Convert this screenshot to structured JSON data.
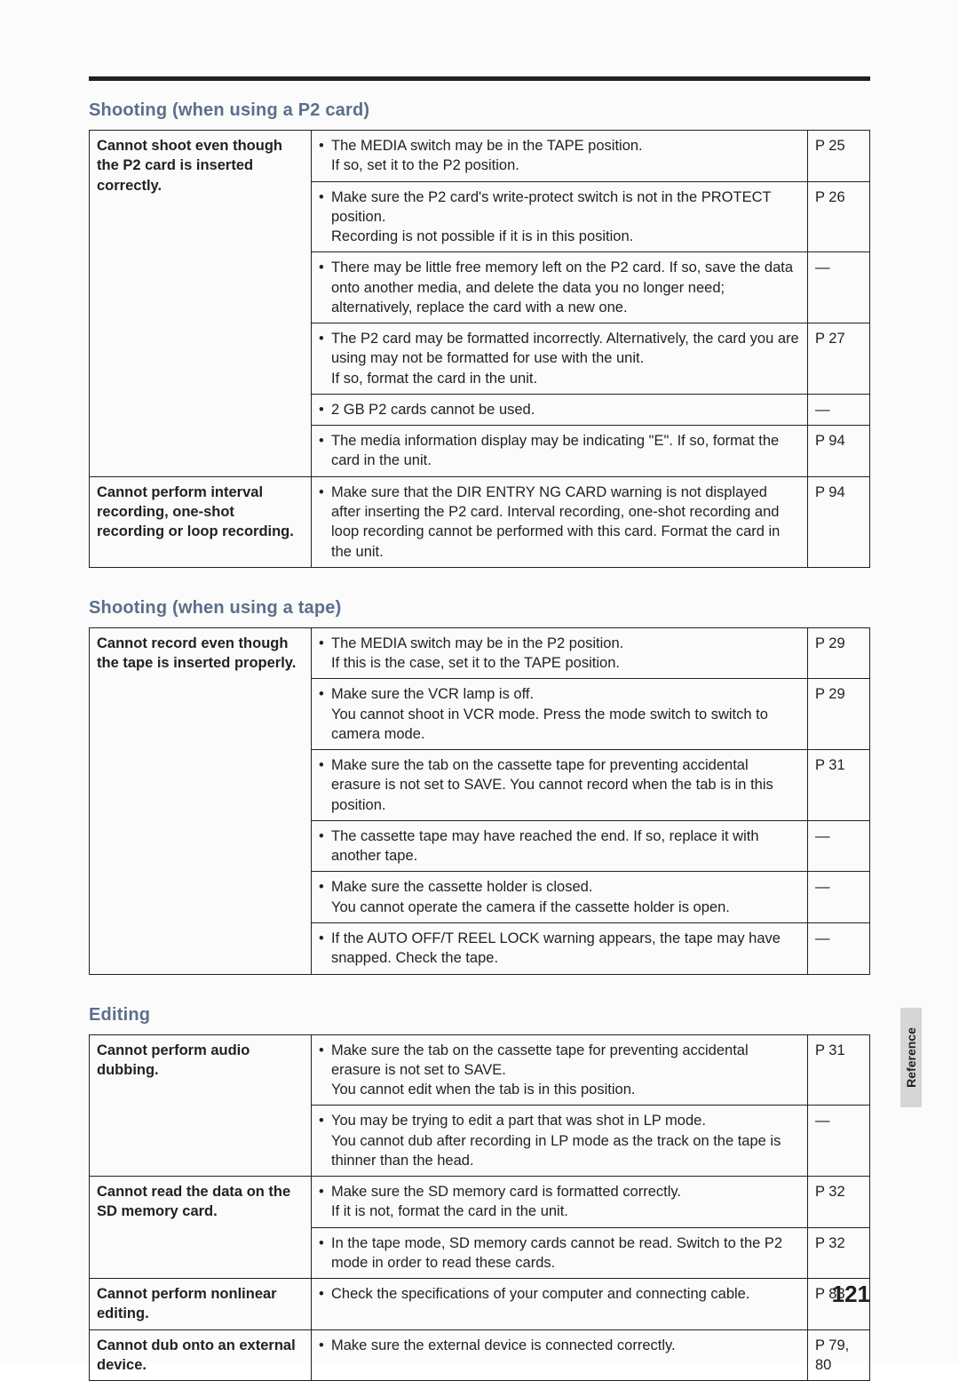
{
  "page_number": "121",
  "side_tab": "Reference",
  "sections": [
    {
      "title": "Shooting (when using a P2 card)",
      "groups": [
        {
          "problem": "Cannot shoot even though the P2 card is inserted correctly.",
          "rows": [
            {
              "cause": "The MEDIA switch may be in the TAPE position.\nIf so, set it to the P2 position.",
              "ref": "P 25"
            },
            {
              "cause": "Make sure the P2 card's write-protect switch is not in the PROTECT position.\nRecording is not possible if it is in this position.",
              "ref": "P 26"
            },
            {
              "cause": "There may be little free memory left on the P2 card. If so, save the data onto another media, and delete the data you no longer need; alternatively, replace the card with a new one.",
              "ref": "—"
            },
            {
              "cause": "The P2 card may be formatted incorrectly. Alternatively, the card you are using may not be formatted for use with the unit.\nIf so, format the card in the unit.",
              "ref": "P 27"
            },
            {
              "cause": "2 GB P2 cards cannot be used.",
              "ref": "—"
            },
            {
              "cause": "The media information display may be indicating \"E\". If so, format the card in the unit.",
              "ref": "P 94"
            }
          ]
        },
        {
          "problem": "Cannot perform interval recording, one-shot recording or loop recording.",
          "rows": [
            {
              "cause": "Make sure that the DIR ENTRY NG CARD warning is not displayed after inserting the P2 card. Interval recording, one-shot recording and loop recording cannot be performed with this card. Format the card in the unit.",
              "ref": "P 94"
            }
          ]
        }
      ]
    },
    {
      "title": "Shooting (when using a tape)",
      "groups": [
        {
          "problem": "Cannot record even though the tape is inserted properly.",
          "rows": [
            {
              "cause": "The MEDIA switch may be in the P2 position.\nIf this is the case, set it to the TAPE position.",
              "ref": "P 29"
            },
            {
              "cause": "Make sure the VCR lamp is off.\nYou cannot shoot in VCR mode. Press the mode switch to switch to camera mode.",
              "ref": "P 29"
            },
            {
              "cause": "Make sure the tab on the cassette tape for preventing accidental erasure is not set to SAVE. You cannot record when the tab is in this position.",
              "ref": "P 31"
            },
            {
              "cause": "The cassette tape may have reached the end. If so, replace it with another tape.",
              "ref": "—"
            },
            {
              "cause": "Make sure the cassette holder is closed.\nYou cannot operate the camera if the cassette holder is open.",
              "ref": "—"
            },
            {
              "cause": "If the AUTO OFF/T REEL LOCK warning appears, the tape may have snapped. Check the tape.",
              "ref": "—"
            }
          ]
        }
      ]
    },
    {
      "title": "Editing",
      "groups": [
        {
          "problem": "Cannot perform audio dubbing.",
          "rows": [
            {
              "cause": "Make sure the tab on the cassette tape for preventing accidental erasure is not set to SAVE.\nYou cannot edit when the tab is in this position.",
              "ref": "P 31"
            },
            {
              "cause": "You may be trying to edit a part that was shot in LP mode.\nYou cannot dub after recording in LP mode as the track on the tape is thinner than the head.",
              "ref": "—"
            }
          ]
        },
        {
          "problem": "Cannot read the data on the SD memory card.",
          "rows": [
            {
              "cause": "Make sure the SD memory card is formatted correctly.\nIf it is not, format the card in the unit.",
              "ref": "P 32"
            },
            {
              "cause": "In the tape mode, SD memory cards cannot be read. Switch to the P2 mode in order to read these cards.",
              "ref": "P 32"
            }
          ]
        },
        {
          "problem": "Cannot perform nonlinear editing.",
          "rows": [
            {
              "cause": "Check the specifications of your computer and connecting cable.",
              "ref": "P 83"
            }
          ]
        },
        {
          "problem": "Cannot dub onto an external device.",
          "rows": [
            {
              "cause": "Make sure the external device is connected correctly.",
              "ref": "P 79, 80"
            }
          ]
        }
      ]
    }
  ]
}
